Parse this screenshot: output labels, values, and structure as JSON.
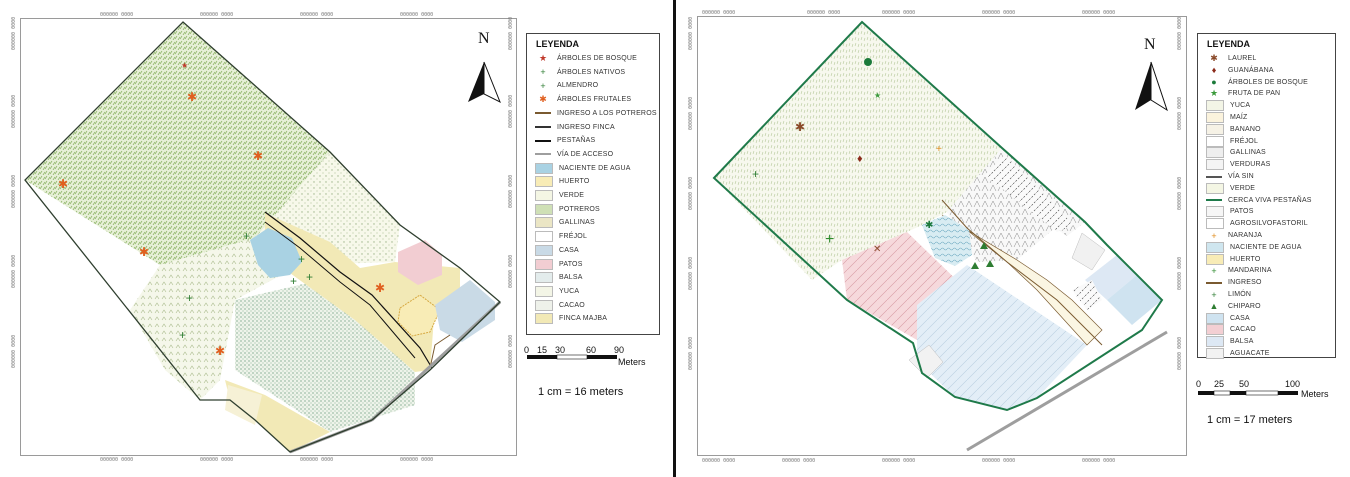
{
  "left": {
    "legend_title": "LEYENDA",
    "legend": [
      {
        "label": "ÁRBOLES DE BOSQUE",
        "icon": "star-icon",
        "color": "#c0392b"
      },
      {
        "label": "ÁRBOLES NATIVOS",
        "icon": "plus-icon",
        "color": "#2e7d32"
      },
      {
        "label": "ALMENDRO",
        "icon": "plus-icon",
        "color": "#2e7d32"
      },
      {
        "label": "ÁRBOLES FRUTALES",
        "icon": "asterisk-icon",
        "color": "#e06020"
      },
      {
        "label": "INGRESO A LOS POTREROS",
        "icon": "line-icon",
        "color": "#7a5a30"
      },
      {
        "label": "INGRESO FINCA",
        "icon": "line-icon",
        "color": "#333333"
      },
      {
        "label": "PESTAÑAS",
        "icon": "line-icon",
        "color": "#111111"
      },
      {
        "label": "VÍA DE ACCESO",
        "icon": "line-icon",
        "color": "#9e9e9e"
      },
      {
        "label": "NACIENTE DE AGUA",
        "icon": "fill-icon",
        "color": "#a9d2e3"
      },
      {
        "label": "HUERTO",
        "icon": "fill-icon",
        "color": "#f8ecb6"
      },
      {
        "label": "VERDE",
        "icon": "fill-icon",
        "color": "#f4f6e4"
      },
      {
        "label": "POTREROS",
        "icon": "fill-icon",
        "color": "#cfe0b6"
      },
      {
        "label": "GALLINAS",
        "icon": "fill-icon",
        "color": "#ebe6c5"
      },
      {
        "label": "FRÉJOL",
        "icon": "fill-icon",
        "color": "#ffffff"
      },
      {
        "label": "CASA",
        "icon": "fill-icon",
        "color": "#c9dae6"
      },
      {
        "label": "PATOS",
        "icon": "fill-icon",
        "color": "#f2cdd2"
      },
      {
        "label": "BALSA",
        "icon": "fill-icon",
        "color": "#e3ecec"
      },
      {
        "label": "YUCA",
        "icon": "fill-icon",
        "color": "#f3f5e6"
      },
      {
        "label": "CACAO",
        "icon": "fill-icon",
        "color": "#eef1ea"
      },
      {
        "label": "FINCA MAJBA",
        "icon": "fill-icon",
        "color": "#f2e9b6"
      }
    ],
    "north": "N",
    "scale_ticks": [
      "0",
      "15",
      "30",
      "60",
      "90"
    ],
    "scale_unit": "Meters",
    "ratio": "1 cm = 16 meters",
    "coords_top": [
      "000000 0000",
      "000000 0000",
      "000000 0000",
      "000000 0000"
    ],
    "coords_side": [
      "000000 0000",
      "000000 0000",
      "000000 0000",
      "000000 0000",
      "000000 0000"
    ]
  },
  "right": {
    "legend_title": "LEYENDA",
    "legend": [
      {
        "label": "LAUREL",
        "icon": "asterisk-icon",
        "color": "#8a4a2a"
      },
      {
        "label": "GUANÁBANA",
        "icon": "diamond-icon",
        "color": "#8b2a1a"
      },
      {
        "label": "ÁRBOLES DE BOSQUE",
        "icon": "circle-icon",
        "color": "#1b7a3a"
      },
      {
        "label": "FRUTA DE PAN",
        "icon": "star-icon",
        "color": "#3a9a3a"
      },
      {
        "label": "YUCA",
        "icon": "fill-icon",
        "color": "#f3f5e6"
      },
      {
        "label": "MAÍZ",
        "icon": "fill-icon",
        "color": "#fbf3dd"
      },
      {
        "label": "BANANO",
        "icon": "fill-icon",
        "color": "#f6f2e6"
      },
      {
        "label": "FRÉJOL",
        "icon": "fill-icon",
        "color": "#ffffff"
      },
      {
        "label": "GALLINAS",
        "icon": "fill-icon",
        "color": "#eeeeee"
      },
      {
        "label": "VERDURAS",
        "icon": "fill-icon",
        "color": "#f4f4f4"
      },
      {
        "label": "VÍA SIN",
        "icon": "line-icon",
        "color": "#555555"
      },
      {
        "label": "VERDE",
        "icon": "fill-icon",
        "color": "#f4f6e4"
      },
      {
        "label": "CERCA VIVA PESTAÑAS",
        "icon": "line-icon",
        "color": "#1e7a4a"
      },
      {
        "label": "PATOS",
        "icon": "fill-icon",
        "color": "#f6f6f6"
      },
      {
        "label": "AGROSILVOFASTORIL",
        "icon": "fill-icon",
        "color": "#ffffff"
      },
      {
        "label": "NARANJA",
        "icon": "plus-icon",
        "color": "#e08a1a"
      },
      {
        "label": "NACIENTE DE AGUA",
        "icon": "fill-icon",
        "color": "#cfe6ef"
      },
      {
        "label": "HUERTO",
        "icon": "fill-icon",
        "color": "#f8ecb6"
      },
      {
        "label": "MANDARINA",
        "icon": "plus-icon",
        "color": "#2e8b2e"
      },
      {
        "label": "INGRESO",
        "icon": "line-icon",
        "color": "#7a5a30"
      },
      {
        "label": "LIMÓN",
        "icon": "plus-icon",
        "color": "#2e7d32"
      },
      {
        "label": "CHIPARO",
        "icon": "triangle-icon",
        "color": "#2e7d32"
      },
      {
        "label": "CASA",
        "icon": "fill-icon",
        "color": "#cfe3f0"
      },
      {
        "label": "CACAO",
        "icon": "fill-icon",
        "color": "#f3cfd3"
      },
      {
        "label": "BALSA",
        "icon": "fill-icon",
        "color": "#dde8f4"
      },
      {
        "label": "AGUACATE",
        "icon": "fill-icon",
        "color": "#f2f2f2"
      }
    ],
    "north": "N",
    "scale_ticks": [
      "0",
      "25",
      "50",
      "100"
    ],
    "scale_unit": "Meters",
    "ratio": "1 cm = 17 meters",
    "coords_top": [
      "000000 0000",
      "000000 0000",
      "000000 0000",
      "000000 0000",
      "000000 0000"
    ],
    "coords_side": [
      "000000 0000",
      "000000 0000",
      "000000 0000",
      "000000 0000",
      "000000 0000"
    ]
  },
  "colors": {
    "boundary_left": "#2f3f2f",
    "boundary_right": "#1f7a4a",
    "pasture": "#9fc07a",
    "water": "#a9d2e3",
    "house": "#c9dae6",
    "ducks": "#f2cdd2",
    "garden": "#f8ecb6",
    "finca": "#f2e9b6",
    "cacao_r": "#f3cfd3",
    "casa_r": "#cfe3f0"
  }
}
